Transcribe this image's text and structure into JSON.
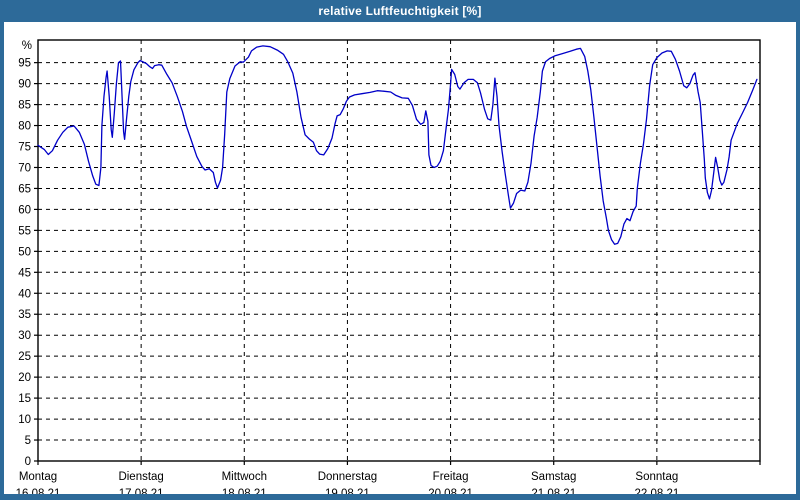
{
  "window": {
    "title": "relative Luftfeuchtigkeit [%]"
  },
  "colors": {
    "titlebar": "#2d6a99",
    "window_border": "#2d6a99",
    "title_text": "#ffffff",
    "plot_background": "#ffffff",
    "axis": "#000000",
    "grid": "#000000",
    "line": "#0000c8"
  },
  "chart_data": {
    "type": "line",
    "title": "relative Luftfeuchtigkeit [%]",
    "unit_label": "%",
    "xlabel": "",
    "ylabel": "%",
    "ylim": [
      0,
      100.4
    ],
    "ytick_min": 0,
    "ytick_max": 95,
    "ytick_step": 5,
    "grid": "dashed",
    "legend": "none",
    "x_days": [
      {
        "name": "Montag",
        "date": "16.08.21"
      },
      {
        "name": "Dienstag",
        "date": "17.08.21"
      },
      {
        "name": "Mittwoch",
        "date": "18.08.21"
      },
      {
        "name": "Donnerstag",
        "date": "19.08.21"
      },
      {
        "name": "Freitag",
        "date": "20.08.21"
      },
      {
        "name": "Samstag",
        "date": "21.08.21"
      },
      {
        "name": "Sonntag",
        "date": "22.08.21"
      }
    ],
    "series": [
      {
        "name": "relative Luftfeuchtigkeit",
        "color": "#0000c8",
        "x_unit": "days_since_start",
        "points": [
          [
            0.0,
            75.3
          ],
          [
            0.06,
            74.3
          ],
          [
            0.1,
            73.1
          ],
          [
            0.14,
            74.0
          ],
          [
            0.19,
            76.5
          ],
          [
            0.24,
            78.4
          ],
          [
            0.29,
            79.6
          ],
          [
            0.35,
            79.9
          ],
          [
            0.4,
            78.4
          ],
          [
            0.45,
            75.5
          ],
          [
            0.49,
            71.5
          ],
          [
            0.53,
            68.0
          ],
          [
            0.56,
            66.0
          ],
          [
            0.59,
            65.7
          ],
          [
            0.61,
            70.0
          ],
          [
            0.62,
            80.0
          ],
          [
            0.64,
            87.0
          ],
          [
            0.66,
            91.5
          ],
          [
            0.67,
            93.0
          ],
          [
            0.69,
            87.0
          ],
          [
            0.71,
            79.0
          ],
          [
            0.72,
            77.2
          ],
          [
            0.74,
            83.0
          ],
          [
            0.76,
            90.0
          ],
          [
            0.78,
            95.0
          ],
          [
            0.8,
            95.4
          ],
          [
            0.81,
            90.0
          ],
          [
            0.83,
            78.5
          ],
          [
            0.84,
            76.7
          ],
          [
            0.86,
            82.0
          ],
          [
            0.88,
            87.0
          ],
          [
            0.9,
            90.5
          ],
          [
            0.93,
            93.3
          ],
          [
            0.97,
            95.0
          ],
          [
            0.99,
            95.5
          ],
          [
            1.05,
            94.8
          ],
          [
            1.08,
            94.1
          ],
          [
            1.11,
            93.6
          ],
          [
            1.13,
            94.3
          ],
          [
            1.17,
            94.5
          ],
          [
            1.2,
            94.4
          ],
          [
            1.25,
            92.2
          ],
          [
            1.3,
            90.2
          ],
          [
            1.35,
            87.0
          ],
          [
            1.4,
            83.4
          ],
          [
            1.44,
            79.8
          ],
          [
            1.49,
            76.2
          ],
          [
            1.54,
            72.6
          ],
          [
            1.59,
            70.2
          ],
          [
            1.62,
            69.4
          ],
          [
            1.66,
            69.7
          ],
          [
            1.7,
            68.8
          ],
          [
            1.72,
            66.5
          ],
          [
            1.74,
            65.1
          ],
          [
            1.77,
            67.0
          ],
          [
            1.79,
            70.0
          ],
          [
            1.81,
            78.0
          ],
          [
            1.83,
            88.0
          ],
          [
            1.86,
            91.2
          ],
          [
            1.91,
            94.2
          ],
          [
            1.96,
            95.2
          ],
          [
            1.99,
            95.1
          ],
          [
            2.04,
            96.3
          ],
          [
            2.07,
            97.8
          ],
          [
            2.12,
            98.7
          ],
          [
            2.18,
            99.0
          ],
          [
            2.25,
            98.8
          ],
          [
            2.32,
            98.0
          ],
          [
            2.38,
            97.0
          ],
          [
            2.42,
            95.3
          ],
          [
            2.47,
            92.5
          ],
          [
            2.51,
            88.0
          ],
          [
            2.55,
            82.0
          ],
          [
            2.59,
            77.8
          ],
          [
            2.63,
            76.8
          ],
          [
            2.67,
            76.0
          ],
          [
            2.7,
            74.0
          ],
          [
            2.73,
            73.2
          ],
          [
            2.77,
            73.0
          ],
          [
            2.81,
            74.5
          ],
          [
            2.85,
            77.0
          ],
          [
            2.88,
            80.5
          ],
          [
            2.9,
            82.3
          ],
          [
            2.93,
            82.6
          ],
          [
            2.96,
            84.0
          ],
          [
            2.99,
            85.8
          ],
          [
            3.02,
            86.8
          ],
          [
            3.07,
            87.3
          ],
          [
            3.14,
            87.6
          ],
          [
            3.22,
            87.9
          ],
          [
            3.29,
            88.3
          ],
          [
            3.35,
            88.2
          ],
          [
            3.42,
            88.0
          ],
          [
            3.47,
            87.2
          ],
          [
            3.53,
            86.6
          ],
          [
            3.59,
            86.5
          ],
          [
            3.63,
            84.8
          ],
          [
            3.67,
            81.5
          ],
          [
            3.71,
            80.3
          ],
          [
            3.74,
            80.7
          ],
          [
            3.76,
            83.5
          ],
          [
            3.78,
            81.0
          ],
          [
            3.79,
            73.0
          ],
          [
            3.81,
            70.5
          ],
          [
            3.84,
            70.0
          ],
          [
            3.87,
            70.3
          ],
          [
            3.9,
            71.5
          ],
          [
            3.93,
            74.0
          ],
          [
            3.95,
            78.0
          ],
          [
            3.98,
            84.0
          ],
          [
            4.0,
            90.0
          ],
          [
            4.01,
            93.4
          ],
          [
            4.04,
            92.2
          ],
          [
            4.07,
            89.3
          ],
          [
            4.09,
            88.7
          ],
          [
            4.13,
            90.2
          ],
          [
            4.17,
            91.0
          ],
          [
            4.22,
            91.0
          ],
          [
            4.26,
            90.2
          ],
          [
            4.29,
            87.8
          ],
          [
            4.33,
            83.8
          ],
          [
            4.36,
            81.6
          ],
          [
            4.39,
            81.3
          ],
          [
            4.41,
            85.0
          ],
          [
            4.43,
            91.3
          ],
          [
            4.45,
            87.0
          ],
          [
            4.47,
            80.0
          ],
          [
            4.5,
            73.8
          ],
          [
            4.53,
            68.5
          ],
          [
            4.56,
            63.5
          ],
          [
            4.58,
            60.3
          ],
          [
            4.61,
            61.5
          ],
          [
            4.64,
            63.8
          ],
          [
            4.68,
            64.6
          ],
          [
            4.72,
            64.4
          ],
          [
            4.75,
            66.5
          ],
          [
            4.78,
            71.0
          ],
          [
            4.81,
            77.5
          ],
          [
            4.84,
            82.0
          ],
          [
            4.87,
            88.0
          ],
          [
            4.89,
            93.0
          ],
          [
            4.92,
            95.2
          ],
          [
            4.96,
            96.0
          ],
          [
            5.01,
            96.6
          ],
          [
            5.08,
            97.1
          ],
          [
            5.16,
            97.7
          ],
          [
            5.22,
            98.2
          ],
          [
            5.26,
            98.4
          ],
          [
            5.3,
            96.5
          ],
          [
            5.33,
            93.0
          ],
          [
            5.36,
            88.5
          ],
          [
            5.39,
            82.0
          ],
          [
            5.42,
            75.0
          ],
          [
            5.45,
            68.0
          ],
          [
            5.48,
            62.0
          ],
          [
            5.51,
            58.0
          ],
          [
            5.53,
            55.0
          ],
          [
            5.56,
            52.8
          ],
          [
            5.59,
            51.7
          ],
          [
            5.62,
            51.9
          ],
          [
            5.65,
            53.5
          ],
          [
            5.68,
            56.5
          ],
          [
            5.71,
            57.8
          ],
          [
            5.74,
            57.3
          ],
          [
            5.77,
            59.5
          ],
          [
            5.8,
            60.8
          ],
          [
            5.81,
            65.0
          ],
          [
            5.84,
            71.0
          ],
          [
            5.87,
            75.5
          ],
          [
            5.9,
            81.5
          ],
          [
            5.93,
            89.5
          ],
          [
            5.96,
            94.5
          ],
          [
            6.0,
            96.2
          ],
          [
            6.05,
            97.3
          ],
          [
            6.1,
            97.8
          ],
          [
            6.14,
            97.7
          ],
          [
            6.18,
            95.8
          ],
          [
            6.22,
            93.0
          ],
          [
            6.26,
            89.5
          ],
          [
            6.29,
            89.0
          ],
          [
            6.32,
            90.0
          ],
          [
            6.35,
            92.0
          ],
          [
            6.37,
            92.6
          ],
          [
            6.4,
            88.0
          ],
          [
            6.42,
            85.5
          ],
          [
            6.44,
            79.0
          ],
          [
            6.46,
            72.0
          ],
          [
            6.47,
            67.5
          ],
          [
            6.49,
            64.0
          ],
          [
            6.51,
            62.5
          ],
          [
            6.53,
            64.5
          ],
          [
            6.55,
            68.5
          ],
          [
            6.57,
            72.4
          ],
          [
            6.59,
            70.0
          ],
          [
            6.61,
            67.0
          ],
          [
            6.63,
            65.8
          ],
          [
            6.65,
            66.5
          ],
          [
            6.68,
            69.5
          ],
          [
            6.7,
            72.5
          ],
          [
            6.72,
            76.5
          ],
          [
            6.75,
            78.5
          ],
          [
            6.78,
            80.5
          ],
          [
            6.83,
            83.0
          ],
          [
            6.88,
            85.5
          ],
          [
            6.93,
            88.5
          ],
          [
            6.97,
            91.0
          ]
        ]
      }
    ]
  }
}
